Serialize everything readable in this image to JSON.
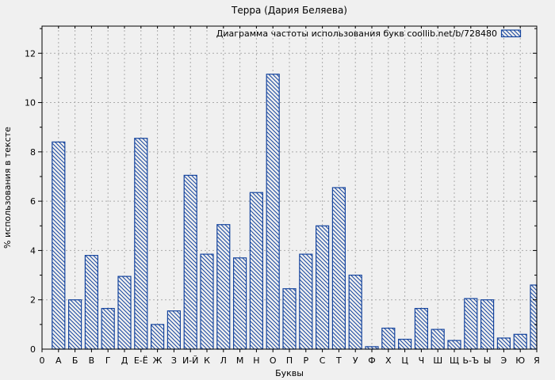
{
  "window": {
    "title": "Терра (Дария Беляева)"
  },
  "colors": {
    "background": "#f0f0f0",
    "plot_background": "#f0f0f0",
    "frame": "#000000",
    "grid": "#ababab",
    "bar_border": "#16459e",
    "bar_hatch": "#16459e",
    "bar_fill": "#f0f0f0",
    "text": "#000000"
  },
  "chart_data": {
    "type": "bar",
    "title": "Терра (Дария Беляева)",
    "xlabel": "Буквы",
    "ylabel": "% использования в тексте",
    "series_label": "Диаграмма частоты использования букв coollib.net/b/728480",
    "legend_position": "top-right-inside",
    "grid": true,
    "grid_style": "dashed",
    "hatch": "diagonal-backslash",
    "ylim": [
      0,
      13.1
    ],
    "yticks": [
      0,
      2,
      4,
      6,
      8,
      10,
      12
    ],
    "categories": [
      "0",
      "А",
      "Б",
      "В",
      "Г",
      "Д",
      "Е-Ё",
      "Ж",
      "З",
      "И-Й",
      "К",
      "Л",
      "М",
      "Н",
      "О",
      "П",
      "Р",
      "С",
      "Т",
      "У",
      "Ф",
      "Х",
      "Ц",
      "Ч",
      "Ш",
      "Щ",
      "Ь-Ъ",
      "Ы",
      "Э",
      "Ю",
      "Я"
    ],
    "values": [
      0,
      8.4,
      2.0,
      3.8,
      1.65,
      2.95,
      8.55,
      1.0,
      1.55,
      7.05,
      3.85,
      5.05,
      3.7,
      6.35,
      11.15,
      2.45,
      3.85,
      5.0,
      6.55,
      3.0,
      0.1,
      0.85,
      0.4,
      1.65,
      0.8,
      0.35,
      2.05,
      2.0,
      0.45,
      0.6,
      2.6
    ]
  }
}
